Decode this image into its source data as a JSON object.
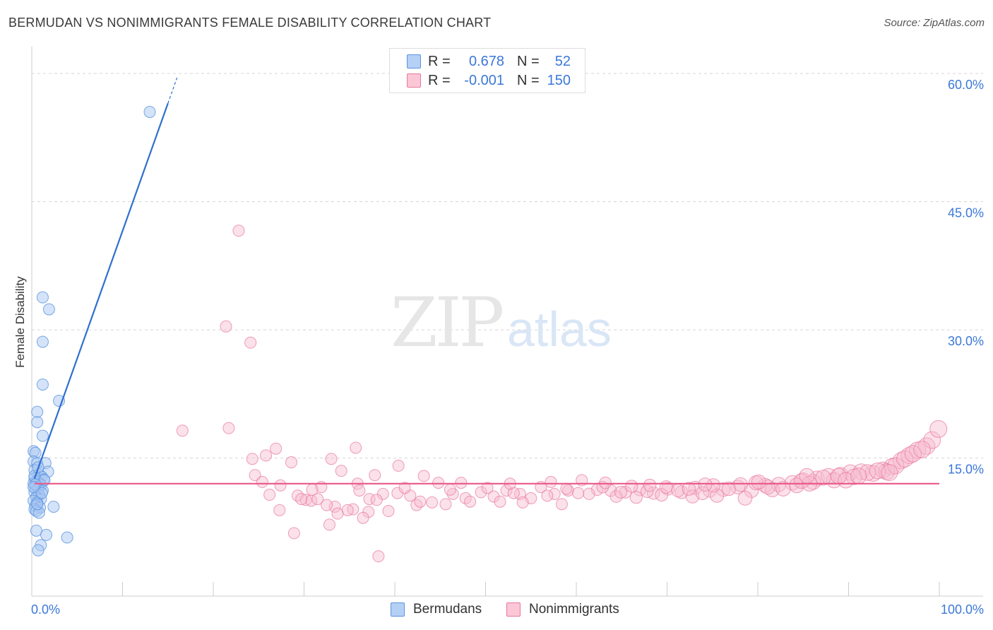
{
  "header": {
    "title": "BERMUDAN VS NONIMMIGRANTS FEMALE DISABILITY CORRELATION CHART",
    "source": "Source: ZipAtlas.com"
  },
  "watermark": {
    "zip": "ZIP",
    "atlas": "atlas"
  },
  "legend": {
    "r_label": "R =",
    "n_label": "N =",
    "rows": [
      {
        "r": "0.678",
        "n": "52"
      },
      {
        "r": "-0.001",
        "n": "150"
      }
    ]
  },
  "chart_data": {
    "type": "scatter",
    "title": "BERMUDAN VS NONIMMIGRANTS FEMALE DISABILITY CORRELATION CHART",
    "ylabel": "Female Disability",
    "xlabel": "",
    "x_tick_labels": [
      "0.0%",
      "100.0%"
    ],
    "y_tick_labels": [
      "15.0%",
      "30.0%",
      "45.0%",
      "60.0%"
    ],
    "y_ticks": [
      15,
      30,
      45,
      60
    ],
    "xlim": [
      0,
      100
    ],
    "ylim": [
      0,
      62
    ],
    "grid": "horizontal dashed",
    "legend_position": "top-center",
    "series": [
      {
        "name": "Bermudans",
        "color": "#5a93e0",
        "fill": "#a9c8f2",
        "r": 0.678,
        "n": 52,
        "trendline": {
          "x0": 0.3,
          "y0": 12.6,
          "x1": 15.0,
          "y1": 56.5,
          "dashed_to": {
            "x": 16.0,
            "y": 59.5
          }
        },
        "points": [
          [
            13.0,
            55.5
          ],
          [
            1.2,
            33.8
          ],
          [
            1.9,
            32.4
          ],
          [
            1.2,
            28.6
          ],
          [
            1.2,
            23.6
          ],
          [
            3.0,
            21.7
          ],
          [
            0.6,
            20.4
          ],
          [
            0.6,
            19.2
          ],
          [
            1.2,
            17.6
          ],
          [
            0.2,
            15.8
          ],
          [
            0.4,
            15.6
          ],
          [
            0.2,
            14.6
          ],
          [
            0.6,
            14.4
          ],
          [
            1.5,
            14.4
          ],
          [
            1.8,
            13.4
          ],
          [
            0.3,
            13.6
          ],
          [
            0.8,
            13.1
          ],
          [
            1.1,
            12.8
          ],
          [
            0.3,
            12.6
          ],
          [
            0.5,
            12.3
          ],
          [
            1.3,
            12.5
          ],
          [
            0.6,
            12.2
          ],
          [
            0.9,
            12.0
          ],
          [
            0.2,
            12.0
          ],
          [
            1.0,
            11.8
          ],
          [
            0.4,
            11.5
          ],
          [
            0.7,
            11.4
          ],
          [
            1.2,
            11.2
          ],
          [
            0.3,
            11.0
          ],
          [
            0.8,
            10.7
          ],
          [
            0.5,
            10.4
          ],
          [
            1.0,
            10.2
          ],
          [
            0.2,
            10.0
          ],
          [
            0.6,
            9.8
          ],
          [
            0.4,
            9.4
          ],
          [
            0.9,
            9.2
          ],
          [
            2.4,
            9.3
          ],
          [
            0.3,
            9.0
          ],
          [
            0.5,
            8.8
          ],
          [
            0.8,
            8.6
          ],
          [
            0.6,
            9.6
          ],
          [
            1.4,
            12.4
          ],
          [
            0.3,
            12.9
          ],
          [
            0.7,
            13.9
          ],
          [
            0.5,
            6.5
          ],
          [
            1.6,
            6.0
          ],
          [
            3.9,
            5.7
          ],
          [
            1.0,
            4.8
          ],
          [
            0.7,
            4.2
          ],
          [
            0.4,
            11.9
          ],
          [
            1.1,
            10.9
          ],
          [
            0.2,
            11.6
          ]
        ]
      },
      {
        "name": "Nonimmigrants",
        "color": "#e8769b",
        "fill": "#f6bcd0",
        "r": -0.001,
        "n": 150,
        "trendline": {
          "x0": 0.3,
          "y0": 12.0,
          "x1": 100.0,
          "y1": 12.0
        },
        "points": [
          [
            22.8,
            41.6
          ],
          [
            21.4,
            30.4
          ],
          [
            24.1,
            28.5
          ],
          [
            16.6,
            18.2
          ],
          [
            21.7,
            18.5
          ],
          [
            26.9,
            16.1
          ],
          [
            25.8,
            15.3
          ],
          [
            24.3,
            14.9
          ],
          [
            35.7,
            16.2
          ],
          [
            33.0,
            14.9
          ],
          [
            40.4,
            14.1
          ],
          [
            28.6,
            14.5
          ],
          [
            24.6,
            13.0
          ],
          [
            34.1,
            13.5
          ],
          [
            37.8,
            13.0
          ],
          [
            27.4,
            11.8
          ],
          [
            35.9,
            12.0
          ],
          [
            31.9,
            11.6
          ],
          [
            26.2,
            10.7
          ],
          [
            29.3,
            10.6
          ],
          [
            30.2,
            10.1
          ],
          [
            30.8,
            10.0
          ],
          [
            31.5,
            10.2
          ],
          [
            33.4,
            9.3
          ],
          [
            32.5,
            9.5
          ],
          [
            35.4,
            9.0
          ],
          [
            37.2,
            10.2
          ],
          [
            38.7,
            10.8
          ],
          [
            40.3,
            10.9
          ],
          [
            38.0,
            10.1
          ],
          [
            41.7,
            10.6
          ],
          [
            43.2,
            12.9
          ],
          [
            44.8,
            12.1
          ],
          [
            46.4,
            10.8
          ],
          [
            47.8,
            10.3
          ],
          [
            49.5,
            11.0
          ],
          [
            50.9,
            10.5
          ],
          [
            52.3,
            11.2
          ],
          [
            53.8,
            10.8
          ],
          [
            56.1,
            11.6
          ],
          [
            57.6,
            10.8
          ],
          [
            59.1,
            11.2
          ],
          [
            60.6,
            12.4
          ],
          [
            62.3,
            11.3
          ],
          [
            63.8,
            11.2
          ],
          [
            65.4,
            11.0
          ],
          [
            67.0,
            11.3
          ],
          [
            68.5,
            10.9
          ],
          [
            70.1,
            11.4
          ],
          [
            71.6,
            11.0
          ],
          [
            73.1,
            11.5
          ],
          [
            74.7,
            11.2
          ],
          [
            76.2,
            11.3
          ],
          [
            77.8,
            11.6
          ],
          [
            79.3,
            11.2
          ],
          [
            80.8,
            11.8
          ],
          [
            82.3,
            11.9
          ],
          [
            83.8,
            12.1
          ],
          [
            85.0,
            12.4
          ],
          [
            86.5,
            12.6
          ],
          [
            87.8,
            12.9
          ],
          [
            89.1,
            13.0
          ],
          [
            90.2,
            13.3
          ],
          [
            91.4,
            13.4
          ],
          [
            92.7,
            13.2
          ],
          [
            93.8,
            13.6
          ],
          [
            94.8,
            14.0
          ],
          [
            95.8,
            14.7
          ],
          [
            96.7,
            15.3
          ],
          [
            97.6,
            15.9
          ],
          [
            98.6,
            16.4
          ],
          [
            99.2,
            17.1
          ],
          [
            99.9,
            18.4
          ],
          [
            55.0,
            10.3
          ],
          [
            54.1,
            9.8
          ],
          [
            58.4,
            9.6
          ],
          [
            61.4,
            10.8
          ],
          [
            64.4,
            10.5
          ],
          [
            66.6,
            10.4
          ],
          [
            69.4,
            10.7
          ],
          [
            72.8,
            10.5
          ],
          [
            75.5,
            10.6
          ],
          [
            78.6,
            10.3
          ],
          [
            81.6,
            11.3
          ],
          [
            84.3,
            11.8
          ],
          [
            86.1,
            12.2
          ],
          [
            88.4,
            12.4
          ],
          [
            90.6,
            12.8
          ],
          [
            92.1,
            13.3
          ],
          [
            94.2,
            13.4
          ],
          [
            95.2,
            14.1
          ],
          [
            96.2,
            14.9
          ],
          [
            97.1,
            15.5
          ],
          [
            98.1,
            16.0
          ],
          [
            44.1,
            9.8
          ],
          [
            45.6,
            9.6
          ],
          [
            42.4,
            9.5
          ],
          [
            39.3,
            8.8
          ],
          [
            37.1,
            8.7
          ],
          [
            36.5,
            8.0
          ],
          [
            34.8,
            8.9
          ],
          [
            33.7,
            8.5
          ],
          [
            32.8,
            7.2
          ],
          [
            28.9,
            6.2
          ],
          [
            27.3,
            8.9
          ],
          [
            36.1,
            11.2
          ],
          [
            41.1,
            11.5
          ],
          [
            42.8,
            9.9
          ],
          [
            46.1,
            11.3
          ],
          [
            48.3,
            9.9
          ],
          [
            50.2,
            11.5
          ],
          [
            51.6,
            9.9
          ],
          [
            53.1,
            10.9
          ],
          [
            56.8,
            10.6
          ],
          [
            58.9,
            11.4
          ],
          [
            60.2,
            10.9
          ],
          [
            62.9,
            11.6
          ],
          [
            64.9,
            11.0
          ],
          [
            66.1,
            11.7
          ],
          [
            67.8,
            11.1
          ],
          [
            69.9,
            11.6
          ],
          [
            71.2,
            11.2
          ],
          [
            72.4,
            11.4
          ],
          [
            73.9,
            10.9
          ],
          [
            75.1,
            11.8
          ],
          [
            76.8,
            11.4
          ],
          [
            78.1,
            11.9
          ],
          [
            79.8,
            12.1
          ],
          [
            81.1,
            11.6
          ],
          [
            82.8,
            11.4
          ],
          [
            84.8,
            12.3
          ],
          [
            85.7,
            12.0
          ],
          [
            87.2,
            12.7
          ],
          [
            88.9,
            12.9
          ],
          [
            89.7,
            12.4
          ],
          [
            91.1,
            12.9
          ],
          [
            93.2,
            13.5
          ],
          [
            94.5,
            13.3
          ],
          [
            38.2,
            3.5
          ],
          [
            30.9,
            11.3
          ],
          [
            29.7,
            10.2
          ],
          [
            25.4,
            12.2
          ],
          [
            47.3,
            12.1
          ],
          [
            52.7,
            12.0
          ],
          [
            57.2,
            12.2
          ],
          [
            63.2,
            12.1
          ],
          [
            68.1,
            11.8
          ],
          [
            74.2,
            11.9
          ],
          [
            80.1,
            12.2
          ],
          [
            85.4,
            12.9
          ]
        ]
      }
    ]
  },
  "bottom_legend": {
    "items": [
      {
        "label": "Bermudans"
      },
      {
        "label": "Nonimmigrants"
      }
    ]
  }
}
